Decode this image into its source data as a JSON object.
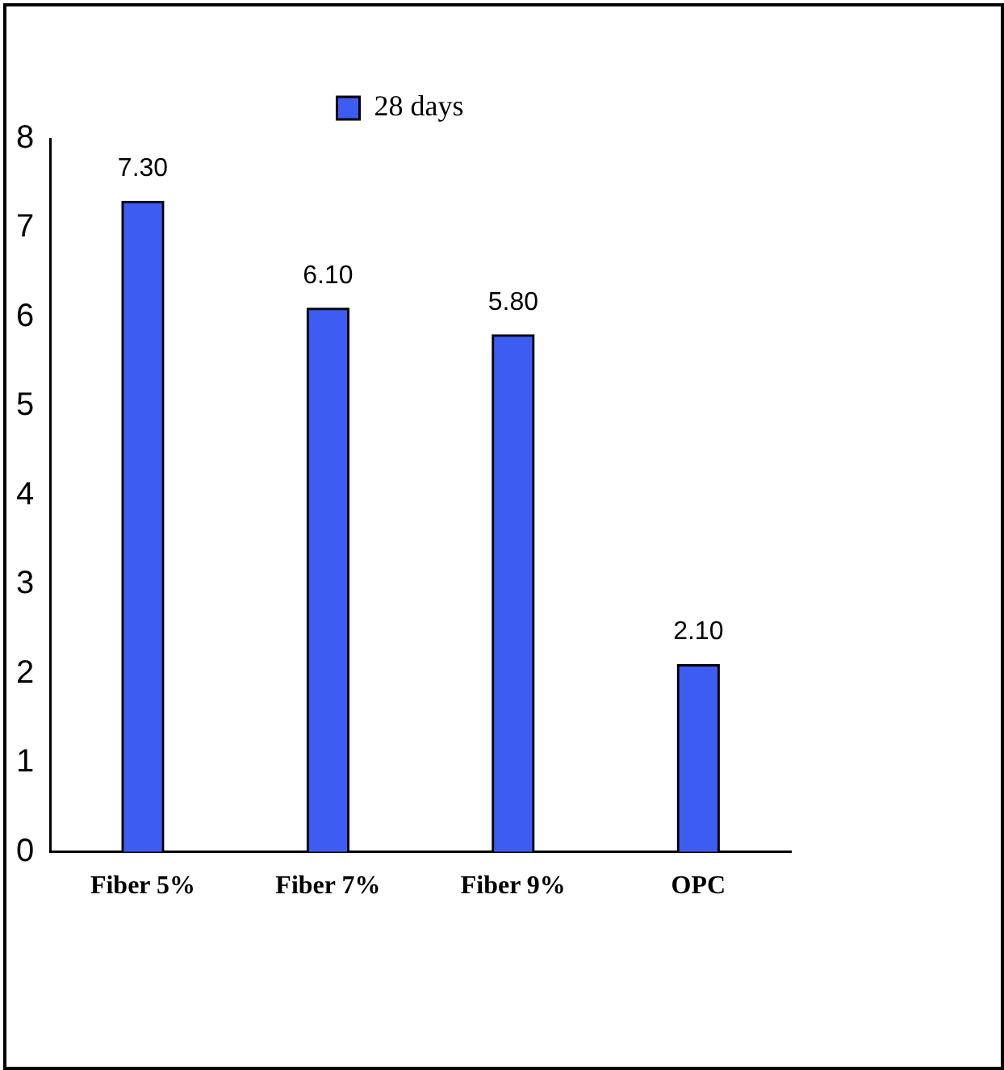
{
  "chart_data": {
    "type": "bar",
    "categories": [
      "Fiber 5%",
      "Fiber 7%",
      "Fiber 9%",
      "OPC"
    ],
    "series": [
      {
        "name": "28 days",
        "color": "#3d5cf2",
        "values": [
          7.3,
          6.1,
          5.8,
          2.1
        ],
        "value_labels": [
          "7.30",
          "6.10",
          "5.80",
          "2.10"
        ]
      }
    ],
    "ylim": [
      0,
      8
    ],
    "yticks": [
      0,
      1,
      2,
      3,
      4,
      5,
      6,
      7,
      8
    ],
    "grid": false,
    "legend": "top"
  }
}
